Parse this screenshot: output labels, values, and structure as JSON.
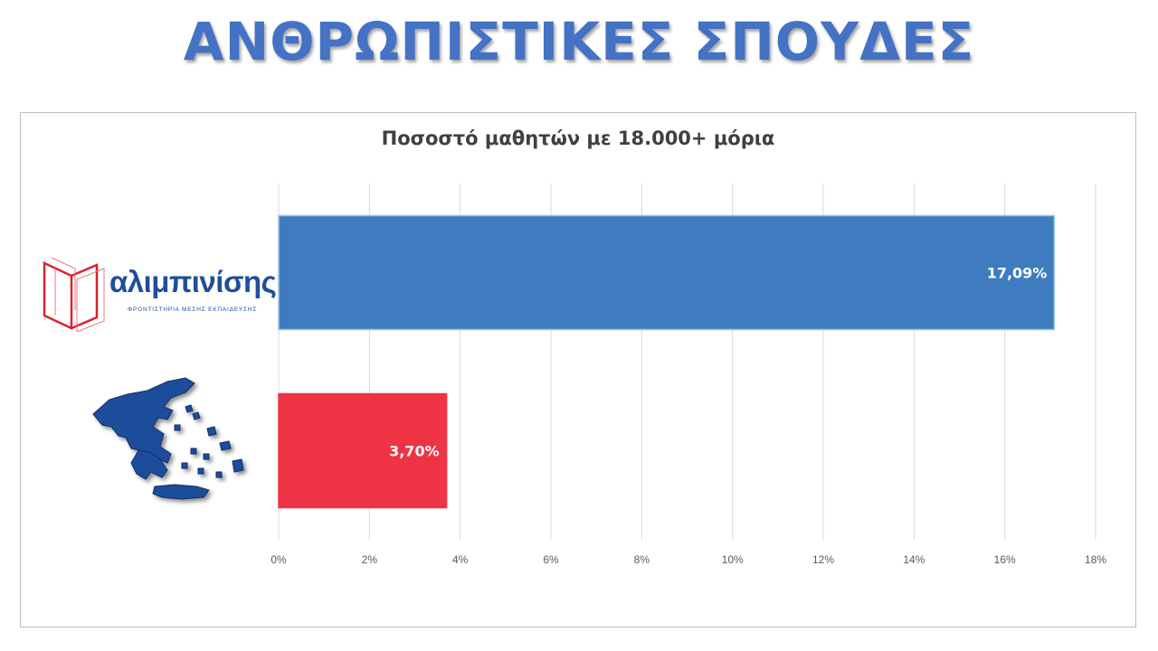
{
  "slide": {
    "title": "ΑΝΘΡΩΠΙΣΤΙΚΕΣ ΣΠΟΥΔΕΣ"
  },
  "logo": {
    "name": "αλιμπινίσης",
    "tagline": "ΦΡΟΝΤΙΣΤΗΡΙΑ ΜΕΣΗΣ ΕΚΠΑΙΔΕΥΣΗΣ"
  },
  "colors": {
    "title": "#4472c4",
    "bar_alimpinisis": "#3f7cbf",
    "bar_greece": "#ee3444",
    "logo_red": "#d9232e",
    "map_blue": "#1f4e9b"
  },
  "chart_data": {
    "type": "bar",
    "orientation": "horizontal",
    "title": "Ποσοστό μαθητών με 18.000+ μόρια",
    "categories": [
      "alimpinisis-logo",
      "greece-map"
    ],
    "category_icons": [
      "alimpinisis-logo",
      "greece-map-icon"
    ],
    "values": [
      17.09,
      3.7
    ],
    "value_labels": [
      "17,09%",
      "3,70%"
    ],
    "bar_colors": [
      "#3f7cbf",
      "#ee3444"
    ],
    "xlim": [
      0,
      18
    ],
    "xticks": [
      0,
      2,
      4,
      6,
      8,
      10,
      12,
      14,
      16,
      18
    ],
    "xtick_labels": [
      "0%",
      "2%",
      "4%",
      "6%",
      "8%",
      "10%",
      "12%",
      "14%",
      "16%",
      "18%"
    ],
    "grid": true,
    "legend": "none"
  }
}
